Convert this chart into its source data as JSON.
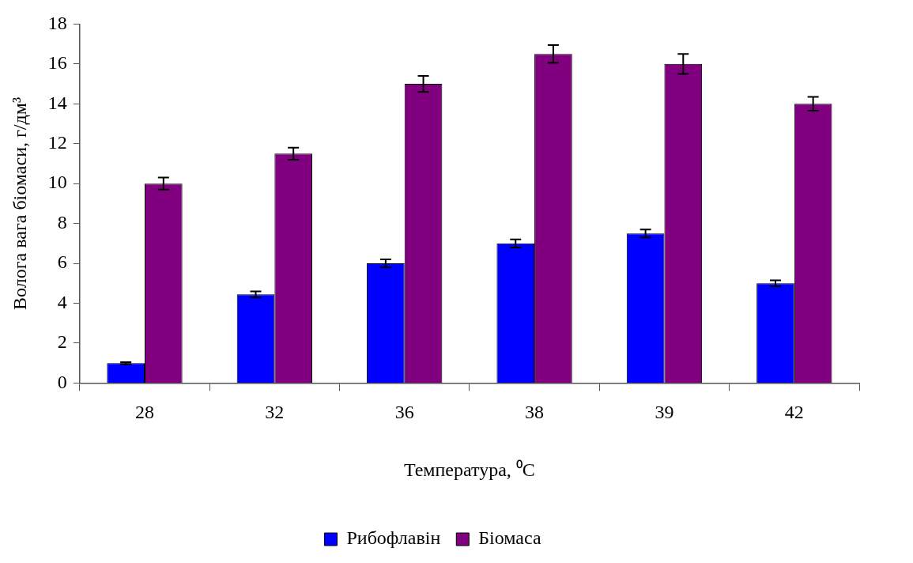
{
  "chart_data": {
    "type": "bar",
    "xlabel": "Температура, ⁰C",
    "ylabel": "Волога вага біомаси, г/дм³",
    "categories": [
      "28",
      "32",
      "36",
      "38",
      "39",
      "42"
    ],
    "series": [
      {
        "name": "Рибофлавін",
        "color": "#0000ff",
        "values": [
          1,
          4.45,
          6,
          7,
          7.5,
          5
        ],
        "errors": [
          0.05,
          0.15,
          0.2,
          0.2,
          0.2,
          0.15
        ]
      },
      {
        "name": "Біомаса",
        "color": "#800080",
        "values": [
          10,
          11.5,
          15,
          16.5,
          16,
          14
        ],
        "errors": [
          0.3,
          0.3,
          0.4,
          0.45,
          0.5,
          0.35
        ]
      }
    ],
    "ylim": [
      0,
      18
    ],
    "yticks": [
      0,
      2,
      4,
      6,
      8,
      10,
      12,
      14,
      16,
      18
    ],
    "grid": false,
    "legend": "bottom"
  }
}
